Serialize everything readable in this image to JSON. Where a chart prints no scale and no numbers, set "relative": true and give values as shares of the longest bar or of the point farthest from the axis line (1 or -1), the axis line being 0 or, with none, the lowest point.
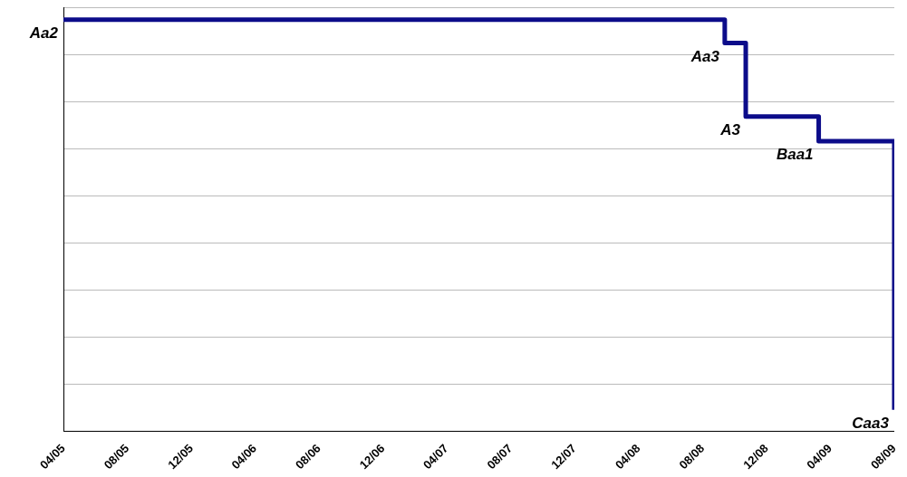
{
  "chart_data": {
    "type": "step",
    "relative": true,
    "grid": "y",
    "marker": "none",
    "color": "#0c0c8a",
    "x": [
      "2005-04",
      "2008-09-12",
      "2008-10-22",
      "2009-03-10",
      "2009-08"
    ],
    "values": [
      1,
      0.943,
      0.765,
      0.705,
      0.053
    ],
    "xlim": [
      "2005-04",
      "2009-08"
    ],
    "xticks": [
      {
        "value": "2005-04",
        "label": "04/05"
      },
      {
        "value": "2005-08",
        "label": "08/05"
      },
      {
        "value": "2005-12",
        "label": "12/05"
      },
      {
        "value": "2006-04",
        "label": "04/06"
      },
      {
        "value": "2006-08",
        "label": "08/06"
      },
      {
        "value": "2006-12",
        "label": "12/06"
      },
      {
        "value": "2007-04",
        "label": "04/07"
      },
      {
        "value": "2007-08",
        "label": "08/07"
      },
      {
        "value": "2007-12",
        "label": "12/07"
      },
      {
        "value": "2008-04",
        "label": "04/08"
      },
      {
        "value": "2008-08",
        "label": "08/08"
      },
      {
        "value": "2008-12",
        "label": "12/08"
      },
      {
        "value": "2009-04",
        "label": "04/09"
      },
      {
        "value": "2009-08",
        "label": "08/09"
      }
    ],
    "annotations": [
      {
        "text": "Aa2",
        "x": "2005-04",
        "y": 1
      },
      {
        "text": "Aa3",
        "x": "2008-09-12",
        "y": 0.943
      },
      {
        "text": "A3",
        "x": "2008-10-22",
        "y": 0.765
      },
      {
        "text": "Baa1",
        "x": "2009-03-10",
        "y": 0.705
      },
      {
        "text": "Caa3",
        "x": "2009-08",
        "y": 0.053
      }
    ]
  }
}
